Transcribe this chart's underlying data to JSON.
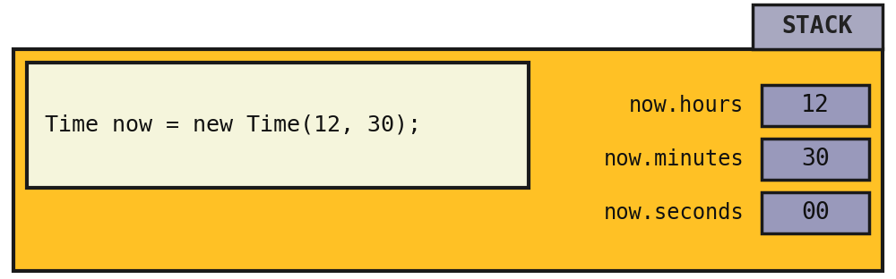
{
  "bg_color": "#FFC125",
  "outer_box_edge": "#1a1a1a",
  "code_box_bg": "#F5F5DC",
  "code_box_edge": "#1a1a1a",
  "code_text": "Time now = new Time(12, 30);",
  "code_font_size": 18,
  "stack_box_bg": "#A8A8C0",
  "stack_box_edge": "#1a1a1a",
  "stack_label": "STACK",
  "stack_font_size": 19,
  "fields": [
    "now.hours",
    "now.minutes",
    "now.seconds"
  ],
  "values": [
    "12",
    "30",
    "00"
  ],
  "field_font_size": 17,
  "value_font_size": 19,
  "value_box_bg": "#9999BB",
  "white_bg": "#FFFFFF",
  "fig_width": 10.0,
  "fig_height": 3.12,
  "dpi": 100
}
